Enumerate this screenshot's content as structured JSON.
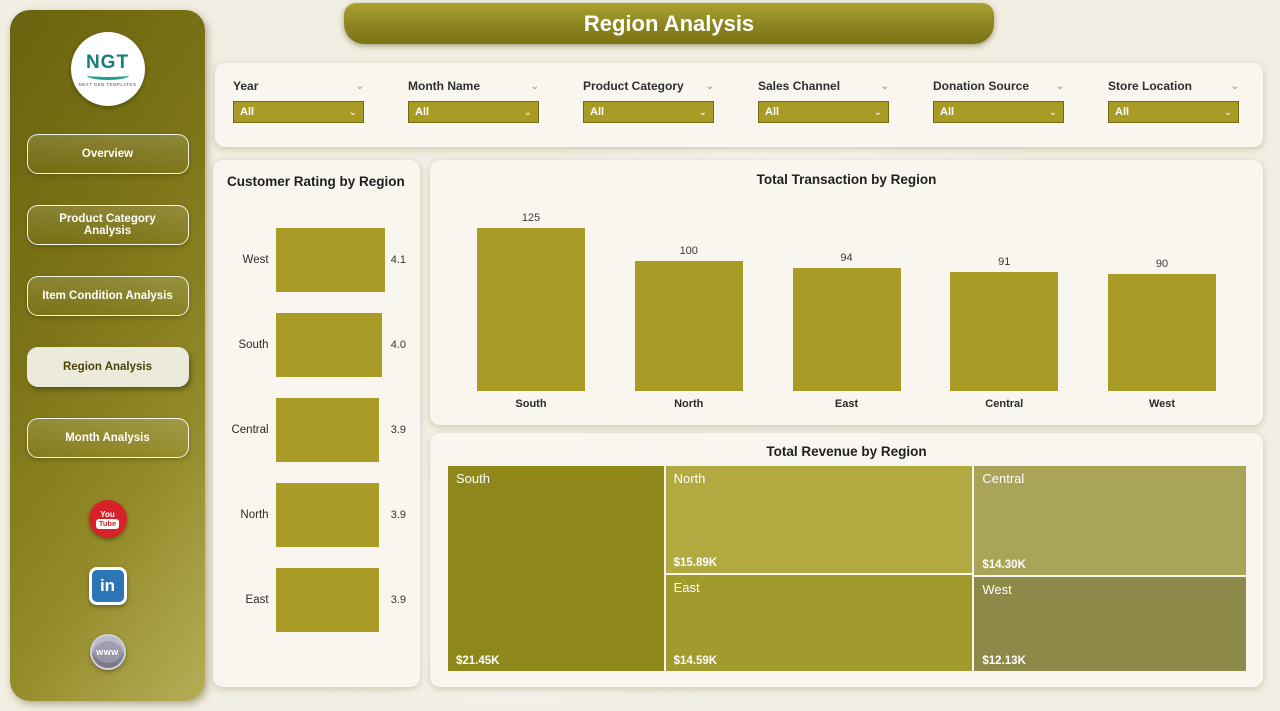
{
  "app": {
    "title": "Region Analysis"
  },
  "colors": {
    "accent": "#a89c26",
    "sidebar_dark": "#6a630f",
    "sidebar_light": "#b6ae58",
    "youtube_red": "#d7222a",
    "linkedin_blue": "#2d76b5",
    "website_gray": "#8f8da0"
  },
  "sidebar": {
    "logo": {
      "text": "NGT",
      "subtext": "NEXT GEN TEMPLATES"
    },
    "items": [
      {
        "label": "Overview",
        "active": false
      },
      {
        "label": "Product Category Analysis",
        "active": false
      },
      {
        "label": "Item Condition Analysis",
        "active": false
      },
      {
        "label": "Region Analysis",
        "active": true
      },
      {
        "label": "Month Analysis",
        "active": false
      }
    ],
    "social": {
      "youtube_line1": "You",
      "youtube_line2": "Tube",
      "linkedin": "in",
      "website": "www"
    }
  },
  "filters": [
    {
      "label": "Year",
      "value": "All"
    },
    {
      "label": "Month Name",
      "value": "All"
    },
    {
      "label": "Product Category",
      "value": "All"
    },
    {
      "label": "Sales Channel",
      "value": "All"
    },
    {
      "label": "Donation Source",
      "value": "All"
    },
    {
      "label": "Store Location",
      "value": "All"
    }
  ],
  "chart_data": [
    {
      "type": "bar",
      "orientation": "horizontal",
      "title": "Customer Rating by Region",
      "categories": [
        "West",
        "South",
        "Central",
        "North",
        "East"
      ],
      "values": [
        4.1,
        4.0,
        3.9,
        3.9,
        3.9
      ],
      "labels": [
        "4.1",
        "4.0",
        "3.9",
        "3.9",
        "3.9"
      ],
      "xlim": [
        0,
        4.1
      ],
      "bar_color": "#a89c26"
    },
    {
      "type": "bar",
      "orientation": "vertical",
      "title": "Total Transaction by Region",
      "categories": [
        "South",
        "North",
        "East",
        "Central",
        "West"
      ],
      "values": [
        125,
        100,
        94,
        91,
        90
      ],
      "labels": [
        "125",
        "100",
        "94",
        "91",
        "90"
      ],
      "ylim": [
        0,
        125
      ],
      "bar_color": "#a89c26"
    },
    {
      "type": "treemap",
      "title": "Total Revenue by Region",
      "items": [
        {
          "label": "South",
          "value": 21.45,
          "value_text": "$21.45K",
          "color": "#8d8819"
        },
        {
          "label": "North",
          "value": 15.89,
          "value_text": "$15.89K",
          "color": "#b2aa41"
        },
        {
          "label": "East",
          "value": 14.59,
          "value_text": "$14.59K",
          "color": "#a19a2d"
        },
        {
          "label": "Central",
          "value": 14.3,
          "value_text": "$14.30K",
          "color": "#a9a458"
        },
        {
          "label": "West",
          "value": 12.13,
          "value_text": "$12.13K",
          "color": "#8d8949"
        }
      ]
    }
  ]
}
